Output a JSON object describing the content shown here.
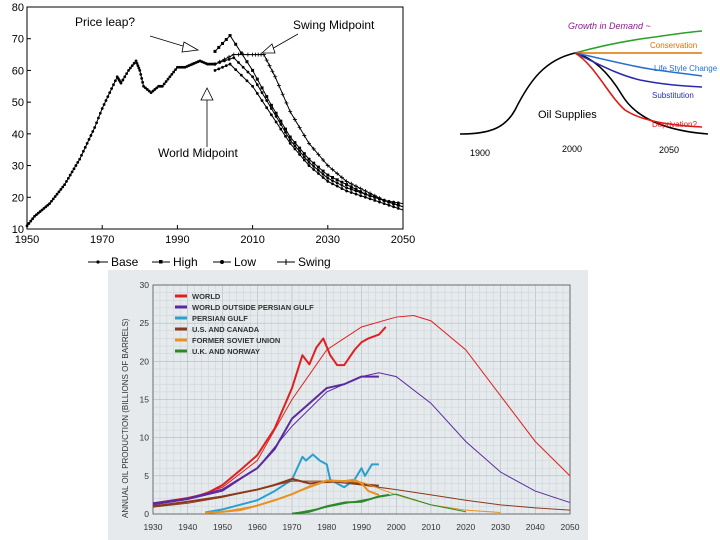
{
  "chart_data": [
    {
      "type": "line",
      "x_ticks": [
        1950,
        1970,
        1990,
        2010,
        2030,
        2050
      ],
      "y_ticks": [
        10,
        20,
        30,
        40,
        50,
        60,
        70,
        80
      ],
      "xlim": [
        1950,
        2050
      ],
      "ylim": [
        10,
        80
      ],
      "grid": false,
      "legend_position": "bottom",
      "annotations": {
        "price_leap": "Price leap?",
        "swing_midpoint": "Swing Midpoint",
        "world_midpoint": "World Midpoint"
      },
      "history": {
        "x": [
          1950,
          1952,
          1954,
          1956,
          1958,
          1960,
          1962,
          1964,
          1966,
          1968,
          1970,
          1972,
          1974,
          1975,
          1977,
          1979,
          1980,
          1981,
          1983,
          1985,
          1986,
          1988,
          1990,
          1992,
          1994,
          1996,
          1998,
          2000
        ],
        "y": [
          11,
          14,
          16,
          18,
          21,
          24,
          28,
          32,
          37,
          42,
          48,
          53,
          58,
          56,
          60,
          63,
          60,
          55,
          53,
          55,
          55,
          58,
          61,
          61,
          62,
          63,
          62,
          62
        ]
      },
      "series": [
        {
          "name": "Base",
          "marker": "dot",
          "x": [
            2000,
            2005,
            2010,
            2015,
            2020,
            2025,
            2030,
            2035,
            2040,
            2045,
            2050
          ],
          "y": [
            62,
            64,
            58,
            48,
            38,
            31,
            26,
            23,
            21,
            19,
            18
          ]
        },
        {
          "name": "High",
          "marker": "square",
          "x": [
            2000,
            2004,
            2010,
            2015,
            2020,
            2025,
            2030,
            2035,
            2040,
            2045,
            2050
          ],
          "y": [
            66,
            71,
            60,
            49,
            39,
            32,
            27,
            24,
            21,
            19,
            17
          ]
        },
        {
          "name": "Low",
          "marker": "dot",
          "x": [
            2000,
            2004,
            2010,
            2015,
            2020,
            2025,
            2030,
            2035,
            2040,
            2045,
            2050
          ],
          "y": [
            60,
            62,
            55,
            46,
            37,
            30,
            25,
            22,
            20,
            18,
            16
          ]
        },
        {
          "name": "Swing",
          "marker": "plus",
          "x": [
            2000,
            2005,
            2010,
            2013,
            2016,
            2020,
            2025,
            2030,
            2035,
            2040,
            2045,
            2050
          ],
          "y": [
            62,
            65,
            65,
            65,
            58,
            47,
            37,
            30,
            25,
            22,
            19,
            17
          ]
        }
      ]
    },
    {
      "type": "line",
      "x_labels": [
        "1900",
        "2000",
        "2050"
      ],
      "labels": {
        "growth": "Growth in Demand ~",
        "conservation": "Conservation",
        "lifestyle": "Life Style Change",
        "substitution": "Substitution",
        "deprivation": "Deprivation?",
        "supplies": "Oil Supplies"
      },
      "colors": {
        "growth": "#2ca02c",
        "conservation": "#e07000",
        "lifestyle": "#2a6fd0",
        "substitution": "#2a2ab0",
        "deprivation": "#e01818",
        "growth_label": "#8a1a8a"
      }
    },
    {
      "type": "line",
      "ylabel": "ANNUAL OIL PRODUCTION (BILLIONS OF BARRELS)",
      "x_ticks": [
        1930,
        1940,
        1950,
        1960,
        1970,
        1980,
        1990,
        2000,
        2010,
        2020,
        2030,
        2040,
        2050
      ],
      "y_ticks": [
        0,
        5,
        10,
        15,
        20,
        25,
        30
      ],
      "xlim": [
        1930,
        2050
      ],
      "ylim": [
        0,
        30
      ],
      "grid": true,
      "legend_position": "top-left",
      "series": [
        {
          "name": "WORLD",
          "color": "#e02020",
          "actual": {
            "x": [
              1930,
              1940,
              1945,
              1950,
              1955,
              1960,
              1965,
              1970,
              1973,
              1975,
              1977,
              1979,
              1981,
              1983,
              1985,
              1988,
              1990,
              1992,
              1995,
              1997
            ],
            "y": [
              1.4,
              2.1,
              2.6,
              3.8,
              5.7,
              7.7,
              11.2,
              16.5,
              20.8,
              19.6,
              21.8,
              23.0,
              20.8,
              19.5,
              19.5,
              21.5,
              22.5,
              23.0,
              23.5,
              24.5
            ]
          },
          "fit": {
            "x": [
              1930,
              1940,
              1950,
              1960,
              1970,
              1980,
              1990,
              2000,
              2005,
              2010,
              2020,
              2030,
              2040,
              2050
            ],
            "y": [
              1.2,
              2.0,
              3.5,
              7.0,
              15.0,
              21.5,
              24.5,
              25.8,
              26.0,
              25.3,
              21.5,
              15.5,
              9.5,
              5.0
            ]
          }
        },
        {
          "name": "WORLD OUTSIDE PERSIAN GULF",
          "color": "#5b2aa0",
          "actual": {
            "x": [
              1930,
              1940,
              1950,
              1960,
              1965,
              1970,
              1975,
              1980,
              1985,
              1990,
              1995
            ],
            "y": [
              1.4,
              2.0,
              3.2,
              6.0,
              8.5,
              12.5,
              14.5,
              16.5,
              17.0,
              18.0,
              18.0
            ]
          },
          "fit": {
            "x": [
              1930,
              1940,
              1950,
              1960,
              1970,
              1980,
              1990,
              1995,
              2000,
              2010,
              2020,
              2030,
              2040,
              2050
            ],
            "y": [
              1.2,
              1.9,
              3.0,
              6.0,
              11.5,
              16.0,
              18.0,
              18.5,
              18.0,
              14.5,
              9.5,
              5.5,
              3.0,
              1.5
            ]
          }
        },
        {
          "name": "PERSIAN GULF",
          "color": "#2aa0d0",
          "actual": {
            "x": [
              1945,
              1950,
              1955,
              1960,
              1965,
              1970,
              1973,
              1974,
              1976,
              1978,
              1980,
              1981,
              1983,
              1985,
              1988,
              1990,
              1991,
              1993,
              1995
            ],
            "y": [
              0.2,
              0.6,
              1.2,
              1.8,
              3.0,
              4.5,
              7.5,
              7.0,
              7.8,
              7.0,
              6.5,
              4.5,
              4.0,
              3.5,
              4.5,
              6.0,
              5.0,
              6.5,
              6.5
            ]
          }
        },
        {
          "name": "U.S. AND CANADA",
          "color": "#8a3a1a",
          "actual": {
            "x": [
              1930,
              1940,
              1950,
              1960,
              1965,
              1970,
              1975,
              1980,
              1985,
              1990,
              1995
            ],
            "y": [
              1.0,
              1.6,
              2.3,
              3.2,
              3.8,
              4.6,
              4.0,
              4.2,
              4.3,
              3.9,
              3.7
            ]
          },
          "fit": {
            "x": [
              1930,
              1940,
              1950,
              1960,
              1970,
              1980,
              1990,
              2000,
              2010,
              2020,
              2030,
              2040,
              2050
            ],
            "y": [
              0.9,
              1.4,
              2.2,
              3.2,
              4.3,
              4.3,
              3.8,
              3.2,
              2.5,
              1.8,
              1.2,
              0.8,
              0.5
            ]
          }
        },
        {
          "name": "FORMER SOVIET UNION",
          "color": "#e89020",
          "actual": {
            "x": [
              1945,
              1950,
              1955,
              1960,
              1965,
              1970,
              1975,
              1980,
              1985,
              1988,
              1990,
              1992,
              1995
            ],
            "y": [
              0.15,
              0.3,
              0.5,
              1.1,
              1.8,
              2.6,
              3.6,
              4.4,
              4.3,
              4.5,
              4.0,
              3.0,
              2.5
            ]
          },
          "fit": {
            "x": [
              1950,
              1960,
              1970,
              1980,
              1990,
              2000,
              2010,
              2020,
              2030
            ],
            "y": [
              0.3,
              1.1,
              2.6,
              4.3,
              4.2,
              2.5,
              1.2,
              0.5,
              0.2
            ]
          }
        },
        {
          "name": "U.K. AND NORWAY",
          "color": "#2a8a2a",
          "actual": {
            "x": [
              1970,
              1975,
              1980,
              1985,
              1990,
              1995,
              1998
            ],
            "y": [
              0.05,
              0.3,
              1.0,
              1.5,
              1.6,
              2.3,
              2.5
            ]
          },
          "fit": {
            "x": [
              1970,
              1980,
              1990,
              2000,
              2010,
              2020
            ],
            "y": [
              0.05,
              0.9,
              1.8,
              2.6,
              1.2,
              0.3
            ]
          }
        }
      ]
    }
  ]
}
